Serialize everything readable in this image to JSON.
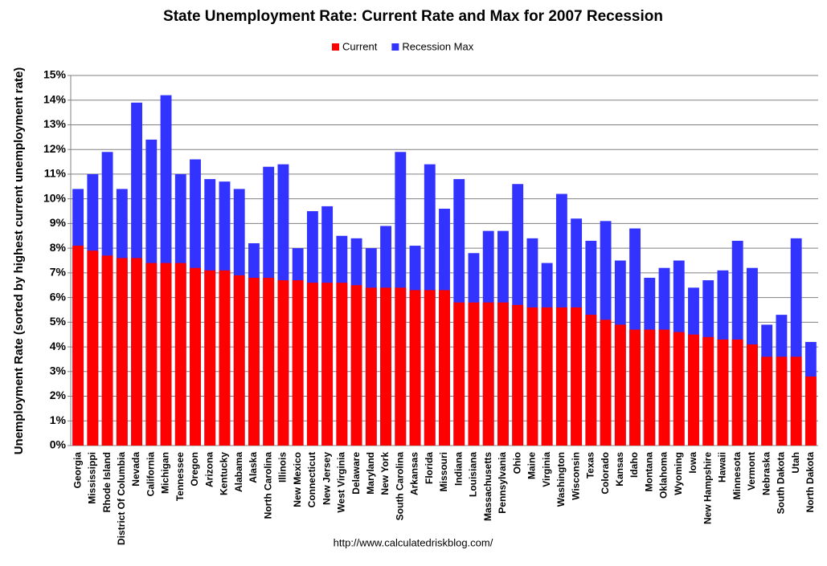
{
  "chart_data": {
    "type": "bar",
    "barmode": "overlay",
    "title": "State Unemployment Rate: Current Rate and Max for 2007 Recession",
    "y_label": "Unemployment Rate (sorted by highest current unemployment rate)",
    "source": "http://www.calculatedriskblog.com/",
    "categories": [
      "Georgia",
      "Mississippi",
      "Rhode Island",
      "District Of Columbia",
      "Nevada",
      "California",
      "Michigan",
      "Tennessee",
      "Oregon",
      "Arizona",
      "Kentucky",
      "Alabama",
      "Alaska",
      "North Carolina",
      "Illinois",
      "New Mexico",
      "Connecticut",
      "New Jersey",
      "West Virginia",
      "Delaware",
      "Maryland",
      "New York",
      "South Carolina",
      "Arkansas",
      "Florida",
      "Missouri",
      "Indiana",
      "Louisiana",
      "Massachusetts",
      "Pennsylvania",
      "Ohio",
      "Maine",
      "Virginia",
      "Washington",
      "Wisconsin",
      "Texas",
      "Colorado",
      "Kansas",
      "Idaho",
      "Montana",
      "Oklahoma",
      "Wyoming",
      "Iowa",
      "New Hampshire",
      "Hawaii",
      "Minnesota",
      "Vermont",
      "Nebraska",
      "South Dakota",
      "Utah",
      "North Dakota"
    ],
    "series": [
      {
        "name": "Recession Max",
        "color": "#3333ff",
        "values": [
          10.4,
          11.0,
          11.9,
          10.4,
          13.9,
          12.4,
          14.2,
          11.0,
          11.6,
          10.8,
          10.7,
          10.4,
          8.2,
          11.3,
          11.4,
          8.0,
          9.5,
          9.7,
          8.5,
          8.4,
          8.0,
          8.9,
          11.9,
          8.1,
          11.4,
          9.6,
          10.8,
          7.8,
          8.7,
          8.7,
          10.6,
          8.4,
          7.4,
          10.2,
          9.2,
          8.3,
          9.1,
          7.5,
          8.8,
          6.8,
          7.2,
          7.5,
          6.4,
          6.7,
          7.1,
          8.3,
          7.2,
          4.9,
          5.3,
          8.4,
          4.2
        ]
      },
      {
        "name": "Current",
        "color": "#ff0000",
        "values": [
          8.1,
          7.9,
          7.7,
          7.6,
          7.6,
          7.4,
          7.4,
          7.4,
          7.2,
          7.1,
          7.1,
          6.9,
          6.8,
          6.8,
          6.7,
          6.7,
          6.6,
          6.6,
          6.6,
          6.5,
          6.4,
          6.4,
          6.4,
          6.3,
          6.3,
          6.3,
          5.8,
          5.8,
          5.8,
          5.8,
          5.7,
          5.6,
          5.6,
          5.6,
          5.6,
          5.3,
          5.1,
          4.9,
          4.7,
          4.7,
          4.7,
          4.6,
          4.5,
          4.4,
          4.3,
          4.3,
          4.1,
          3.6,
          3.6,
          3.6,
          2.8
        ]
      }
    ],
    "legend_order": [
      1,
      0
    ],
    "ylim": [
      0,
      15
    ],
    "yticks": [
      {
        "value": 0,
        "label": "0%"
      },
      {
        "value": 1,
        "label": "1%"
      },
      {
        "value": 2,
        "label": "2%"
      },
      {
        "value": 3,
        "label": "3%"
      },
      {
        "value": 4,
        "label": "4%"
      },
      {
        "value": 5,
        "label": "5%"
      },
      {
        "value": 6,
        "label": "6%"
      },
      {
        "value": 7,
        "label": "7%"
      },
      {
        "value": 8,
        "label": "8%"
      },
      {
        "value": 9,
        "label": "9%"
      },
      {
        "value": 10,
        "label": "10%"
      },
      {
        "value": 11,
        "label": "11%"
      },
      {
        "value": 12,
        "label": "12%"
      },
      {
        "value": 13,
        "label": "13%"
      },
      {
        "value": 14,
        "label": "14%"
      },
      {
        "value": 15,
        "label": "15%"
      }
    ],
    "grid": true
  }
}
